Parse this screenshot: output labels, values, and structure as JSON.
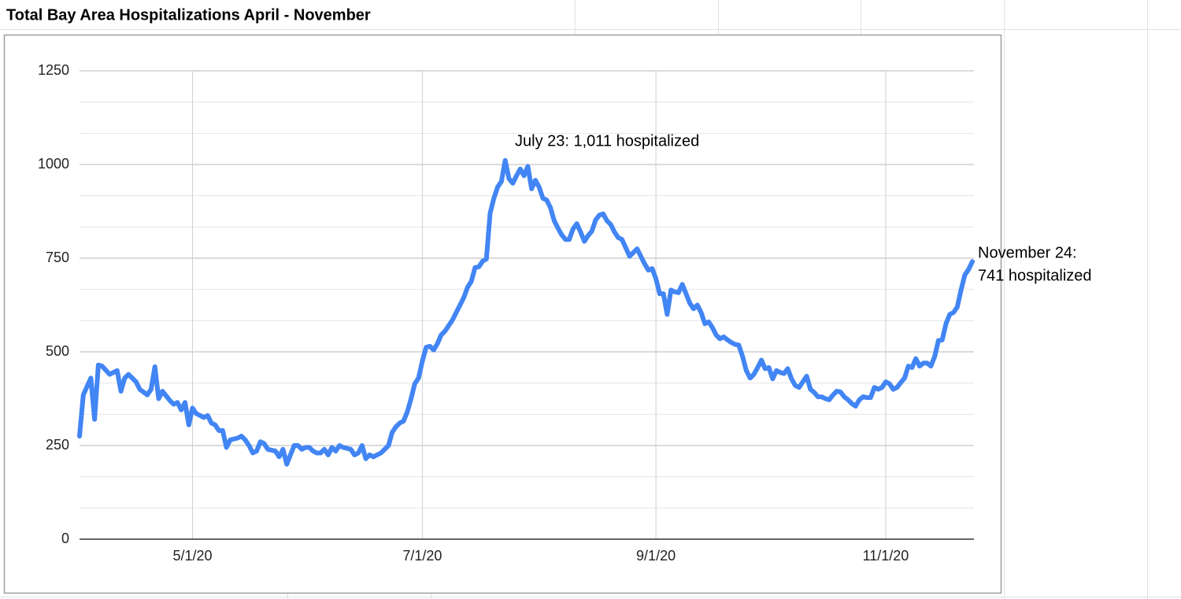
{
  "chart_data": {
    "type": "line",
    "title": "Total Bay Area Hospitalizations April - November",
    "color": "#4285f4",
    "grid": true,
    "x": [
      "4/1/20",
      "4/2/20",
      "4/4/20",
      "4/5/20",
      "4/6/20",
      "4/7/20",
      "4/9/20",
      "4/11/20",
      "4/12/20",
      "4/13/20",
      "4/14/20",
      "4/16/20",
      "4/17/20",
      "4/19/20",
      "4/20/20",
      "4/21/20",
      "4/22/20",
      "4/23/20",
      "4/25/20",
      "4/26/20",
      "4/27/20",
      "4/28/20",
      "4/29/20",
      "4/30/20",
      "5/1/20",
      "5/2/20",
      "5/4/20",
      "5/5/20",
      "5/6/20",
      "5/7/20",
      "5/8/20",
      "5/9/20",
      "5/10/20",
      "5/11/20",
      "5/13/20",
      "5/14/20",
      "5/15/20",
      "5/16/20",
      "5/17/20",
      "5/18/20",
      "5/19/20",
      "5/20/20",
      "5/21/20",
      "5/23/20",
      "5/24/20",
      "5/25/20",
      "5/26/20",
      "5/27/20",
      "5/28/20",
      "5/29/20",
      "5/30/20",
      "5/31/20",
      "6/1/20",
      "6/2/20",
      "6/3/20",
      "6/4/20",
      "6/5/20",
      "6/6/20",
      "6/7/20",
      "6/8/20",
      "6/9/20",
      "6/10/20",
      "6/12/20",
      "6/13/20",
      "6/14/20",
      "6/15/20",
      "6/16/20",
      "6/17/20",
      "6/18/20",
      "6/20/20",
      "6/21/20",
      "6/22/20",
      "6/23/20",
      "6/24/20",
      "6/25/20",
      "6/26/20",
      "6/27/20",
      "6/28/20",
      "6/29/20",
      "6/30/20",
      "7/1/20",
      "7/2/20",
      "7/3/20",
      "7/4/20",
      "7/5/20",
      "7/6/20",
      "7/7/20",
      "7/8/20",
      "7/9/20",
      "7/10/20",
      "7/11/20",
      "7/12/20",
      "7/13/20",
      "7/14/20",
      "7/15/20",
      "7/16/20",
      "7/17/20",
      "7/18/20",
      "7/19/20",
      "7/20/20",
      "7/21/20",
      "7/22/20",
      "7/23/20",
      "7/24/20",
      "7/25/20",
      "7/26/20",
      "7/27/20",
      "7/28/20",
      "7/29/20",
      "7/30/20",
      "7/31/20",
      "8/1/20",
      "8/2/20",
      "8/3/20",
      "8/4/20",
      "8/5/20",
      "8/6/20",
      "8/7/20",
      "8/8/20",
      "8/9/20",
      "8/10/20",
      "8/11/20",
      "8/12/20",
      "8/13/20",
      "8/14/20",
      "8/15/20",
      "8/16/20",
      "8/17/20",
      "8/18/20",
      "8/19/20",
      "8/20/20",
      "8/21/20",
      "8/22/20",
      "8/23/20",
      "8/24/20",
      "8/25/20",
      "8/26/20",
      "8/27/20",
      "8/28/20",
      "8/29/20",
      "8/30/20",
      "8/31/20",
      "9/1/20",
      "9/2/20",
      "9/3/20",
      "9/4/20",
      "9/5/20",
      "9/6/20",
      "9/7/20",
      "9/8/20",
      "9/9/20",
      "9/10/20",
      "9/11/20",
      "9/12/20",
      "9/13/20",
      "9/14/20",
      "9/15/20",
      "9/16/20",
      "9/17/20",
      "9/18/20",
      "9/19/20",
      "9/20/20",
      "9/21/20",
      "9/22/20",
      "9/23/20",
      "9/24/20",
      "9/25/20",
      "9/26/20",
      "9/27/20",
      "9/28/20",
      "9/29/20",
      "9/30/20",
      "10/1/20",
      "10/2/20",
      "10/3/20",
      "10/4/20",
      "10/5/20",
      "10/6/20",
      "10/7/20",
      "10/8/20",
      "10/9/20",
      "10/10/20",
      "10/11/20",
      "10/12/20",
      "10/13/20",
      "10/14/20",
      "10/15/20",
      "10/16/20",
      "10/17/20",
      "10/18/20",
      "10/19/20",
      "10/20/20",
      "10/21/20",
      "10/22/20",
      "10/23/20",
      "10/24/20",
      "10/25/20",
      "10/26/20",
      "10/27/20",
      "10/28/20",
      "10/29/20",
      "10/30/20",
      "10/31/20",
      "11/1/20",
      "11/2/20",
      "11/3/20",
      "11/4/20",
      "11/5/20",
      "11/6/20",
      "11/7/20",
      "11/8/20",
      "11/9/20",
      "11/10/20",
      "11/11/20",
      "11/12/20",
      "11/13/20",
      "11/14/20",
      "11/15/20",
      "11/16/20",
      "11/17/20",
      "11/18/20",
      "11/19/20",
      "11/20/20",
      "11/21/20",
      "11/22/20",
      "11/23/20",
      "11/24/20"
    ],
    "values": [
      275,
      385,
      430,
      320,
      465,
      462,
      440,
      450,
      395,
      430,
      440,
      420,
      400,
      385,
      400,
      460,
      375,
      395,
      370,
      360,
      365,
      345,
      365,
      305,
      350,
      335,
      325,
      330,
      310,
      305,
      290,
      290,
      245,
      265,
      270,
      275,
      265,
      250,
      230,
      235,
      260,
      255,
      240,
      235,
      220,
      240,
      200,
      225,
      250,
      250,
      240,
      245,
      245,
      235,
      230,
      230,
      240,
      225,
      245,
      235,
      250,
      245,
      240,
      225,
      230,
      250,
      215,
      225,
      220,
      230,
      240,
      250,
      285,
      300,
      310,
      315,
      340,
      375,
      415,
      430,
      475,
      512,
      515,
      505,
      522,
      545,
      555,
      570,
      585,
      605,
      625,
      645,
      672,
      688,
      725,
      727,
      742,
      748,
      870,
      910,
      940,
      955,
      1011,
      962,
      950,
      970,
      988,
      970,
      995,
      935,
      958,
      940,
      910,
      905,
      885,
      850,
      830,
      812,
      800,
      800,
      828,
      842,
      820,
      795,
      810,
      822,
      852,
      865,
      868,
      850,
      840,
      820,
      805,
      800,
      778,
      755,
      765,
      775,
      755,
      735,
      718,
      722,
      695,
      655,
      655,
      600,
      665,
      660,
      658,
      680,
      655,
      630,
      615,
      625,
      605,
      575,
      580,
      565,
      545,
      535,
      540,
      532,
      525,
      520,
      518,
      488,
      450,
      430,
      440,
      458,
      478,
      455,
      458,
      428,
      450,
      445,
      442,
      455,
      428,
      410,
      405,
      420,
      435,
      400,
      392,
      380,
      380,
      375,
      372,
      385,
      395,
      393,
      380,
      372,
      362,
      355,
      372,
      380,
      378,
      378,
      405,
      400,
      405,
      420,
      415,
      400,
      405,
      418,
      430,
      462,
      458,
      482,
      462,
      470,
      470,
      462,
      488,
      530,
      532,
      575,
      600,
      605,
      620,
      665,
      705,
      720,
      741
    ],
    "xlim": [
      "4/1/20",
      "11/24/20"
    ],
    "xticks": [
      "5/1/20",
      "7/1/20",
      "9/1/20",
      "11/1/20"
    ],
    "ylim": [
      0,
      1250
    ],
    "yticks": [
      0,
      250,
      500,
      750,
      1000,
      1250
    ],
    "annotations": [
      [
        "July 23: 1,011 hospitalized"
      ],
      [
        "November 24:",
        "741 hospitalized"
      ]
    ]
  }
}
